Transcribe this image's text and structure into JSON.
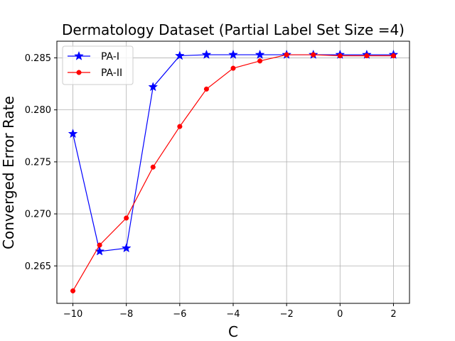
{
  "chart_data": {
    "type": "line",
    "title": "Dermatology Dataset (Partial Label Set Size =4)",
    "xlabel": "C",
    "ylabel": "Converged Error Rate",
    "xlim": [
      -10.6,
      2.6
    ],
    "ylim": [
      0.2614,
      0.2866
    ],
    "x_ticks": [
      -10,
      -8,
      -6,
      -4,
      -2,
      0,
      2
    ],
    "x_tick_labels": [
      "−10",
      "−8",
      "−6",
      "−4",
      "−2",
      "0",
      "2"
    ],
    "y_ticks": [
      0.265,
      0.27,
      0.275,
      0.28,
      0.285
    ],
    "y_tick_labels": [
      "0.265",
      "0.270",
      "0.275",
      "0.280",
      "0.285"
    ],
    "grid": true,
    "legend_position": "top-left",
    "x": [
      -10,
      -9,
      -8,
      -7,
      -6,
      -5,
      -4,
      -3,
      -2,
      -1,
      0,
      1,
      2
    ],
    "series": [
      {
        "name": "PA-I",
        "color": "#0000ff",
        "marker": "star",
        "values": [
          0.2777,
          0.2664,
          0.2667,
          0.2822,
          0.2852,
          0.2853,
          0.2853,
          0.2853,
          0.2853,
          0.2853,
          0.2853,
          0.2853,
          0.2853
        ]
      },
      {
        "name": "PA-II",
        "color": "#ff0000",
        "marker": "circle",
        "values": [
          0.2626,
          0.267,
          0.2696,
          0.2745,
          0.2784,
          0.282,
          0.284,
          0.2847,
          0.2853,
          0.2853,
          0.2852,
          0.2852,
          0.2852
        ]
      }
    ]
  }
}
